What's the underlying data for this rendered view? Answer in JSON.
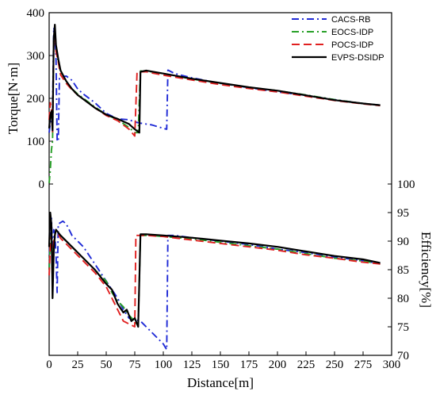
{
  "chart_data": {
    "type": "line",
    "x": {
      "label": "Distance[m]",
      "range": [
        0,
        300
      ],
      "ticks": [
        "0",
        "25",
        "50",
        "75",
        "100",
        "125",
        "150",
        "175",
        "200",
        "225",
        "250",
        "275",
        "300"
      ]
    },
    "panels": [
      {
        "id": "torque",
        "ylabel": "Torque[N·m]",
        "axis_side": "left",
        "ylim": [
          0,
          400
        ],
        "yticks": [
          "0",
          "100",
          "200",
          "300",
          "400"
        ],
        "series": [
          {
            "name": "CACS-RB",
            "color": "#1f2ad6",
            "dash": "dashdot",
            "points": [
              [
                0,
                120
              ],
              [
                1,
                140
              ],
              [
                2,
                165
              ],
              [
                3,
                175
              ],
              [
                4,
                365
              ],
              [
                5,
                350
              ],
              [
                6,
                300
              ],
              [
                7,
                100
              ],
              [
                8,
                100
              ],
              [
                9,
                250
              ],
              [
                15,
                252
              ],
              [
                20,
                242
              ],
              [
                25,
                222
              ],
              [
                30,
                210
              ],
              [
                40,
                190
              ],
              [
                50,
                165
              ],
              [
                60,
                152
              ],
              [
                70,
                150
              ],
              [
                75,
                145
              ],
              [
                80,
                142
              ],
              [
                90,
                138
              ],
              [
                100,
                130
              ],
              [
                103,
                128
              ],
              [
                104,
                266
              ],
              [
                110,
                258
              ],
              [
                125,
                248
              ],
              [
                150,
                235
              ],
              [
                175,
                225
              ],
              [
                200,
                215
              ],
              [
                225,
                207
              ],
              [
                250,
                197
              ],
              [
                275,
                188
              ],
              [
                290,
                184
              ]
            ]
          },
          {
            "name": "EOCS-IDP",
            "color": "#28a028",
            "dash": "dashdot",
            "points": [
              [
                0,
                2
              ],
              [
                1,
                30
              ],
              [
                2,
                80
              ],
              [
                3,
                100
              ],
              [
                4,
                330
              ],
              [
                5,
                370
              ],
              [
                6,
                320
              ],
              [
                8,
                285
              ],
              [
                10,
                262
              ],
              [
                15,
                240
              ],
              [
                20,
                222
              ],
              [
                25,
                210
              ],
              [
                30,
                200
              ],
              [
                40,
                180
              ],
              [
                50,
                162
              ],
              [
                60,
                150
              ],
              [
                70,
                132
              ],
              [
                75,
                120
              ],
              [
                78,
                120
              ],
              [
                80,
                264
              ],
              [
                90,
                262
              ],
              [
                100,
                258
              ],
              [
                125,
                245
              ],
              [
                150,
                235
              ],
              [
                175,
                226
              ],
              [
                200,
                218
              ],
              [
                225,
                208
              ],
              [
                250,
                197
              ],
              [
                275,
                188
              ],
              [
                290,
                184
              ]
            ]
          },
          {
            "name": "POCS-IDP",
            "color": "#e02020",
            "dash": "dash",
            "points": [
              [
                0,
                150
              ],
              [
                1,
                190
              ],
              [
                2,
                175
              ],
              [
                3,
                120
              ],
              [
                4,
                330
              ],
              [
                5,
                370
              ],
              [
                6,
                310
              ],
              [
                8,
                285
              ],
              [
                10,
                255
              ],
              [
                15,
                235
              ],
              [
                20,
                220
              ],
              [
                25,
                208
              ],
              [
                30,
                198
              ],
              [
                40,
                178
              ],
              [
                50,
                160
              ],
              [
                60,
                148
              ],
              [
                70,
                128
              ],
              [
                75,
                112
              ],
              [
                77,
                262
              ],
              [
                85,
                262
              ],
              [
                100,
                254
              ],
              [
                125,
                243
              ],
              [
                150,
                232
              ],
              [
                175,
                223
              ],
              [
                200,
                215
              ],
              [
                225,
                205
              ],
              [
                250,
                195
              ],
              [
                275,
                187
              ],
              [
                290,
                183
              ]
            ]
          },
          {
            "name": "EVPS-DSIDP",
            "color": "#000000",
            "dash": "solid",
            "points": [
              [
                0,
                130
              ],
              [
                1,
                160
              ],
              [
                2,
                170
              ],
              [
                3,
                125
              ],
              [
                4,
                340
              ],
              [
                5,
                372
              ],
              [
                6,
                325
              ],
              [
                8,
                292
              ],
              [
                10,
                265
              ],
              [
                15,
                240
              ],
              [
                20,
                222
              ],
              [
                25,
                208
              ],
              [
                30,
                198
              ],
              [
                40,
                178
              ],
              [
                50,
                162
              ],
              [
                60,
                152
              ],
              [
                70,
                140
              ],
              [
                75,
                128
              ],
              [
                79,
                120
              ],
              [
                80,
                262
              ],
              [
                85,
                265
              ],
              [
                100,
                258
              ],
              [
                125,
                246
              ],
              [
                150,
                236
              ],
              [
                175,
                226
              ],
              [
                200,
                218
              ],
              [
                225,
                207
              ],
              [
                250,
                196
              ],
              [
                275,
                188
              ],
              [
                290,
                184
              ]
            ]
          }
        ]
      },
      {
        "id": "efficiency",
        "ylabel": "Efficiency[%]",
        "axis_side": "right",
        "ylim": [
          70,
          100
        ],
        "yticks": [
          "70",
          "75",
          "80",
          "85",
          "90",
          "95",
          "100"
        ],
        "series": [
          {
            "name": "CACS-RB",
            "color": "#1f2ad6",
            "dash": "dashdot",
            "points": [
              [
                0,
                85
              ],
              [
                1,
                93
              ],
              [
                2,
                94
              ],
              [
                3,
                88
              ],
              [
                4,
                92
              ],
              [
                5,
                91
              ],
              [
                6,
                88
              ],
              [
                7,
                81
              ],
              [
                8,
                93
              ],
              [
                12,
                93.5
              ],
              [
                15,
                93
              ],
              [
                20,
                91
              ],
              [
                30,
                89
              ],
              [
                40,
                86
              ],
              [
                50,
                83
              ],
              [
                60,
                80
              ],
              [
                65,
                78
              ],
              [
                70,
                76.5
              ],
              [
                80,
                76
              ],
              [
                90,
                74
              ],
              [
                100,
                72
              ],
              [
                103,
                71
              ],
              [
                104,
                91
              ],
              [
                110,
                91
              ],
              [
                125,
                90.6
              ],
              [
                150,
                90
              ],
              [
                175,
                89.4
              ],
              [
                200,
                88.6
              ],
              [
                225,
                88
              ],
              [
                250,
                87.2
              ],
              [
                275,
                86.6
              ],
              [
                290,
                86
              ]
            ]
          },
          {
            "name": "EOCS-IDP",
            "color": "#28a028",
            "dash": "dashdot",
            "points": [
              [
                0,
                85
              ],
              [
                1,
                90
              ],
              [
                2,
                91
              ],
              [
                3,
                82
              ],
              [
                4,
                90
              ],
              [
                6,
                92
              ],
              [
                10,
                91
              ],
              [
                20,
                89
              ],
              [
                30,
                87
              ],
              [
                40,
                85
              ],
              [
                50,
                83
              ],
              [
                55,
                81
              ],
              [
                60,
                79.5
              ],
              [
                65,
                78.5
              ],
              [
                70,
                77
              ],
              [
                75,
                76
              ],
              [
                78,
                75
              ],
              [
                80,
                91
              ],
              [
                90,
                91
              ],
              [
                100,
                90.8
              ],
              [
                125,
                90.4
              ],
              [
                150,
                89.8
              ],
              [
                175,
                89.2
              ],
              [
                200,
                88.6
              ],
              [
                225,
                87.8
              ],
              [
                250,
                87
              ],
              [
                275,
                86.5
              ],
              [
                290,
                86
              ]
            ]
          },
          {
            "name": "POCS-IDP",
            "color": "#e02020",
            "dash": "dash",
            "points": [
              [
                0,
                84
              ],
              [
                1,
                89
              ],
              [
                2,
                91
              ],
              [
                3,
                83
              ],
              [
                4,
                90
              ],
              [
                6,
                92
              ],
              [
                10,
                90.5
              ],
              [
                20,
                88.5
              ],
              [
                30,
                86.5
              ],
              [
                40,
                84.5
              ],
              [
                50,
                82
              ],
              [
                55,
                80
              ],
              [
                60,
                78
              ],
              [
                65,
                76
              ],
              [
                70,
                75.5
              ],
              [
                75,
                75
              ],
              [
                76,
                91
              ],
              [
                85,
                91
              ],
              [
                100,
                90.8
              ],
              [
                125,
                90.2
              ],
              [
                150,
                89.6
              ],
              [
                175,
                89
              ],
              [
                200,
                88.4
              ],
              [
                225,
                87.6
              ],
              [
                250,
                87
              ],
              [
                275,
                86.3
              ],
              [
                290,
                86
              ]
            ]
          },
          {
            "name": "EVPS-DSIDP",
            "color": "#000000",
            "dash": "solid",
            "points": [
              [
                0,
                89
              ],
              [
                1,
                95
              ],
              [
                2,
                93
              ],
              [
                3,
                80
              ],
              [
                4,
                88
              ],
              [
                5,
                91
              ],
              [
                6,
                92
              ],
              [
                10,
                91
              ],
              [
                20,
                89
              ],
              [
                30,
                87
              ],
              [
                40,
                85
              ],
              [
                50,
                82.5
              ],
              [
                55,
                81.5
              ],
              [
                60,
                79
              ],
              [
                65,
                77.5
              ],
              [
                68,
                78
              ],
              [
                70,
                77
              ],
              [
                72,
                76
              ],
              [
                75,
                76.5
              ],
              [
                78,
                75
              ],
              [
                80,
                91.2
              ],
              [
                85,
                91.2
              ],
              [
                100,
                91
              ],
              [
                125,
                90.6
              ],
              [
                150,
                90.1
              ],
              [
                175,
                89.6
              ],
              [
                200,
                89
              ],
              [
                225,
                88.2
              ],
              [
                250,
                87.4
              ],
              [
                275,
                86.8
              ],
              [
                290,
                86.2
              ]
            ]
          }
        ]
      }
    ],
    "legend": {
      "placement": "top-right",
      "entries": [
        "CACS-RB",
        "EOCS-IDP",
        "POCS-IDP",
        "EVPS-DSIDP"
      ]
    }
  }
}
